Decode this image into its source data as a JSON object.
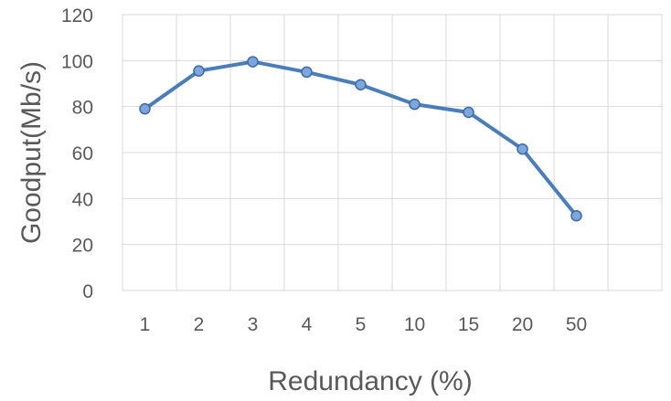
{
  "chart_data": {
    "type": "line",
    "title": "",
    "xlabel": "Redundancy (%)",
    "ylabel": "Goodput(Mb/s)",
    "categories": [
      "1",
      "2",
      "3",
      "4",
      "5",
      "10",
      "15",
      "20",
      "50"
    ],
    "series": [
      {
        "values": [
          79,
          95.5,
          99.5,
          95,
          89.5,
          81,
          77.5,
          61.5,
          32.5
        ]
      }
    ],
    "ylim": [
      0,
      120
    ],
    "yticks": [
      "0",
      "20",
      "40",
      "60",
      "80",
      "100",
      "120"
    ],
    "grid": true,
    "legend": "none",
    "colors": {
      "line": "#4a7ebb",
      "marker_fill": "#7ea6dc",
      "grid": "#d9d9d9",
      "text": "#595959"
    }
  }
}
